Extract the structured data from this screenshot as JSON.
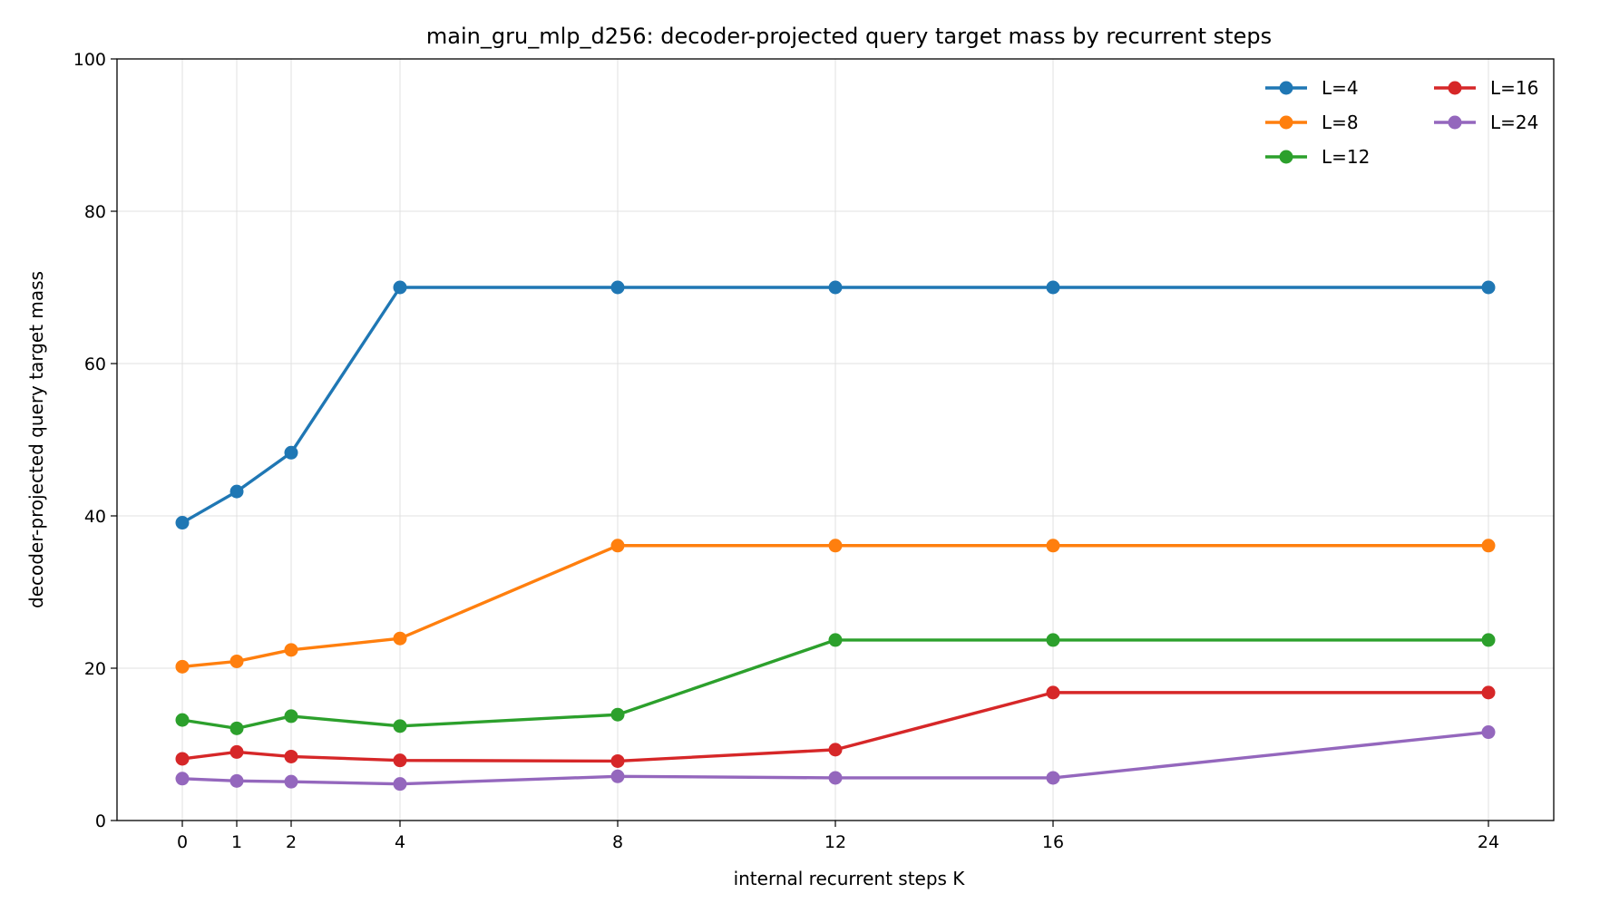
{
  "chart_data": {
    "type": "line",
    "title": "main_gru_mlp_d256: decoder-projected query target mass by recurrent steps",
    "xlabel": "internal recurrent steps K",
    "ylabel": "decoder-projected query target mass",
    "x": [
      0,
      1,
      2,
      4,
      8,
      12,
      16,
      24
    ],
    "xticks": [
      0,
      1,
      2,
      4,
      8,
      12,
      16,
      24
    ],
    "xlim": [
      -1.2,
      25.2
    ],
    "ylim": [
      0,
      100
    ],
    "yticks": [
      0,
      20,
      40,
      60,
      80,
      100
    ],
    "grid": true,
    "legend_position": "top-right",
    "series": [
      {
        "name": "L=4",
        "color": "#1f77b4",
        "values": [
          39.1,
          43.2,
          48.3,
          70.0,
          70.0,
          70.0,
          70.0,
          70.0
        ]
      },
      {
        "name": "L=8",
        "color": "#ff7f0e",
        "values": [
          20.2,
          20.9,
          22.4,
          23.9,
          36.1,
          36.1,
          36.1,
          36.1
        ]
      },
      {
        "name": "L=12",
        "color": "#2ca02c",
        "values": [
          13.2,
          12.1,
          13.7,
          12.4,
          13.9,
          23.7,
          23.7,
          23.7
        ]
      },
      {
        "name": "L=16",
        "color": "#d62728",
        "values": [
          8.1,
          9.0,
          8.4,
          7.9,
          7.8,
          9.3,
          16.8,
          16.8
        ]
      },
      {
        "name": "L=24",
        "color": "#9467bd",
        "values": [
          5.5,
          5.2,
          5.1,
          4.8,
          5.8,
          5.6,
          5.6,
          11.6
        ]
      }
    ]
  }
}
